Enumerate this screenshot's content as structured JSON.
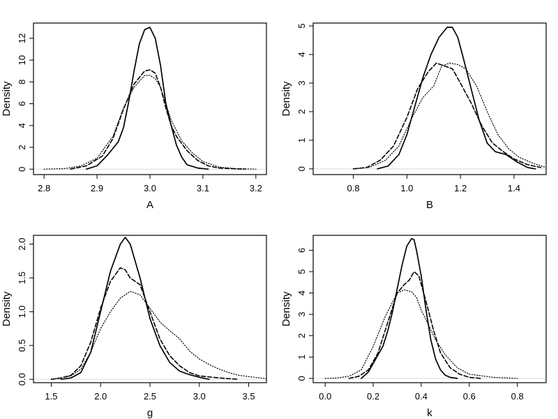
{
  "chart_data": [
    {
      "type": "line",
      "xlabel": "A",
      "ylabel": "Density",
      "xlim": [
        2.78,
        3.22
      ],
      "ylim": [
        -0.5,
        13.4
      ],
      "xticks": [
        2.8,
        2.9,
        3.0,
        3.1,
        3.2
      ],
      "xtick_labels": [
        "2.8",
        "2.9",
        "3.0",
        "3.1",
        "3.2"
      ],
      "yticks": [
        0,
        2,
        4,
        6,
        8,
        10,
        12
      ],
      "ytick_labels": [
        "0",
        "2",
        "4",
        "6",
        "8",
        "10",
        "12"
      ],
      "series": [
        {
          "style": "solid",
          "x": [
            2.88,
            2.9,
            2.92,
            2.94,
            2.95,
            2.96,
            2.97,
            2.98,
            2.99,
            3.0,
            3.01,
            3.02,
            3.03,
            3.04,
            3.05,
            3.06,
            3.07,
            3.09,
            3.11
          ],
          "y": [
            0,
            0.3,
            1.3,
            2.5,
            3.8,
            6.2,
            9.0,
            11.5,
            12.8,
            13.0,
            12.0,
            9.5,
            6.0,
            4.0,
            2.2,
            1.1,
            0.4,
            0.1,
            0
          ]
        },
        {
          "style": "dashed",
          "x": [
            2.85,
            2.88,
            2.91,
            2.93,
            2.95,
            2.97,
            2.99,
            3.0,
            3.01,
            3.02,
            3.03,
            3.04,
            3.05,
            3.07,
            3.09,
            3.11,
            3.13,
            3.15,
            3.18
          ],
          "y": [
            0,
            0.3,
            1.2,
            2.8,
            5.5,
            7.8,
            9.0,
            9.1,
            8.8,
            7.5,
            5.6,
            4.0,
            3.0,
            1.7,
            0.8,
            0.3,
            0.1,
            0.05,
            0
          ]
        },
        {
          "style": "dotted",
          "x": [
            2.8,
            2.84,
            2.87,
            2.9,
            2.93,
            2.95,
            2.97,
            2.99,
            3.0,
            3.01,
            3.02,
            3.04,
            3.06,
            3.08,
            3.1,
            3.13,
            3.16,
            3.2
          ],
          "y": [
            0,
            0.05,
            0.3,
            1.0,
            3.0,
            5.6,
            7.5,
            8.6,
            8.6,
            8.3,
            7.5,
            4.5,
            2.6,
            1.5,
            0.7,
            0.2,
            0.05,
            0
          ]
        }
      ]
    },
    {
      "type": "line",
      "xlabel": "B",
      "ylabel": "Density",
      "xlim": [
        0.65,
        1.52
      ],
      "ylim": [
        -0.2,
        5.1
      ],
      "xticks": [
        0.8,
        1.0,
        1.2,
        1.4
      ],
      "xtick_labels": [
        "0.8",
        "1.0",
        "1.2",
        "1.4"
      ],
      "yticks": [
        0,
        1,
        2,
        3,
        4,
        5
      ],
      "ytick_labels": [
        "0",
        "1",
        "2",
        "3",
        "4",
        "5"
      ],
      "series": [
        {
          "style": "solid",
          "x": [
            0.89,
            0.93,
            0.97,
            1.0,
            1.03,
            1.06,
            1.09,
            1.12,
            1.15,
            1.17,
            1.19,
            1.21,
            1.24,
            1.27,
            1.3,
            1.33,
            1.37,
            1.41,
            1.45,
            1.48
          ],
          "y": [
            0,
            0.1,
            0.5,
            1.2,
            2.2,
            3.2,
            4.0,
            4.6,
            4.95,
            4.95,
            4.6,
            3.9,
            2.8,
            1.7,
            0.9,
            0.6,
            0.5,
            0.25,
            0.05,
            0
          ]
        },
        {
          "style": "dashed",
          "x": [
            0.8,
            0.85,
            0.9,
            0.95,
            1.0,
            1.04,
            1.08,
            1.11,
            1.14,
            1.17,
            1.2,
            1.24,
            1.28,
            1.32,
            1.36,
            1.4,
            1.45,
            1.5
          ],
          "y": [
            0,
            0.05,
            0.3,
            0.8,
            1.8,
            2.8,
            3.4,
            3.7,
            3.6,
            3.5,
            3.0,
            2.3,
            1.5,
            0.9,
            0.6,
            0.35,
            0.15,
            0.05
          ]
        },
        {
          "style": "dotted",
          "x": [
            0.8,
            0.86,
            0.92,
            0.97,
            1.02,
            1.06,
            1.1,
            1.13,
            1.16,
            1.19,
            1.22,
            1.26,
            1.3,
            1.34,
            1.38,
            1.42,
            1.47,
            1.52
          ],
          "y": [
            0,
            0.05,
            0.3,
            0.8,
            1.8,
            2.5,
            2.9,
            3.6,
            3.7,
            3.65,
            3.5,
            2.9,
            2.0,
            1.2,
            0.7,
            0.4,
            0.2,
            0.05
          ]
        }
      ]
    },
    {
      "type": "line",
      "xlabel": "g",
      "ylabel": "Density",
      "xlim": [
        1.32,
        3.68
      ],
      "ylim": [
        -0.05,
        2.13
      ],
      "xticks": [
        1.5,
        2.0,
        2.5,
        3.0,
        3.5
      ],
      "xtick_labels": [
        "1.5",
        "2.0",
        "2.5",
        "3.0",
        "3.5"
      ],
      "yticks": [
        0.0,
        0.5,
        1.0,
        1.5,
        2.0
      ],
      "ytick_labels": [
        "0.0",
        "0.5",
        "1.0",
        "1.5",
        "2.0"
      ],
      "series": [
        {
          "style": "solid",
          "x": [
            1.6,
            1.7,
            1.8,
            1.9,
            2.0,
            2.1,
            2.2,
            2.25,
            2.3,
            2.4,
            2.5,
            2.6,
            2.7,
            2.8,
            2.9,
            3.0,
            3.1
          ],
          "y": [
            0,
            0.02,
            0.1,
            0.4,
            1.0,
            1.6,
            2.0,
            2.1,
            2.0,
            1.5,
            0.9,
            0.5,
            0.25,
            0.12,
            0.07,
            0.03,
            0
          ]
        },
        {
          "style": "dashed",
          "x": [
            1.5,
            1.6,
            1.7,
            1.8,
            1.9,
            2.0,
            2.1,
            2.2,
            2.25,
            2.3,
            2.4,
            2.5,
            2.6,
            2.7,
            2.8,
            2.9,
            3.0,
            3.2,
            3.4
          ],
          "y": [
            0,
            0.02,
            0.06,
            0.2,
            0.55,
            1.05,
            1.45,
            1.65,
            1.62,
            1.5,
            1.4,
            1.0,
            0.6,
            0.35,
            0.2,
            0.1,
            0.05,
            0.02,
            0
          ]
        },
        {
          "style": "dotted",
          "x": [
            1.5,
            1.6,
            1.7,
            1.8,
            1.9,
            2.0,
            2.1,
            2.2,
            2.3,
            2.4,
            2.5,
            2.6,
            2.7,
            2.8,
            2.9,
            3.0,
            3.1,
            3.2,
            3.3,
            3.4,
            3.5,
            3.68
          ],
          "y": [
            0,
            0.02,
            0.05,
            0.15,
            0.4,
            0.75,
            1.0,
            1.2,
            1.3,
            1.25,
            1.05,
            0.85,
            0.72,
            0.6,
            0.42,
            0.3,
            0.22,
            0.15,
            0.1,
            0.06,
            0.04,
            0.01
          ]
        }
      ]
    },
    {
      "type": "line",
      "xlabel": "k",
      "ylabel": "Density",
      "xlim": [
        -0.05,
        0.92
      ],
      "ylim": [
        -0.2,
        6.7
      ],
      "xticks": [
        0.0,
        0.2,
        0.4,
        0.6,
        0.8
      ],
      "xtick_labels": [
        "0.0",
        "0.2",
        "0.4",
        "0.6",
        "0.8"
      ],
      "yticks": [
        0,
        1,
        2,
        3,
        4,
        5,
        6
      ],
      "ytick_labels": [
        "0",
        "1",
        "2",
        "3",
        "4",
        "5",
        "6"
      ],
      "series": [
        {
          "style": "solid",
          "x": [
            0.15,
            0.18,
            0.2,
            0.22,
            0.24,
            0.26,
            0.28,
            0.3,
            0.32,
            0.34,
            0.36,
            0.37,
            0.38,
            0.4,
            0.42,
            0.44,
            0.46,
            0.48,
            0.5,
            0.52,
            0.55
          ],
          "y": [
            0,
            0.3,
            0.7,
            1.1,
            1.5,
            2.2,
            3.1,
            4.2,
            5.3,
            6.2,
            6.55,
            6.5,
            6.0,
            4.8,
            3.2,
            1.8,
            0.9,
            0.4,
            0.15,
            0.05,
            0
          ]
        },
        {
          "style": "dashed",
          "x": [
            0.1,
            0.14,
            0.18,
            0.22,
            0.26,
            0.3,
            0.33,
            0.35,
            0.37,
            0.39,
            0.42,
            0.45,
            0.48,
            0.52,
            0.56,
            0.6,
            0.65
          ],
          "y": [
            0,
            0.1,
            0.4,
            1.2,
            2.6,
            4.0,
            4.4,
            4.6,
            5.0,
            4.8,
            3.6,
            2.3,
            1.2,
            0.5,
            0.2,
            0.05,
            0
          ]
        },
        {
          "style": "dotted",
          "x": [
            0.0,
            0.05,
            0.1,
            0.15,
            0.2,
            0.25,
            0.3,
            0.33,
            0.36,
            0.38,
            0.4,
            0.43,
            0.46,
            0.5,
            0.55,
            0.6,
            0.7,
            0.8
          ],
          "y": [
            0,
            0.02,
            0.1,
            0.4,
            1.5,
            2.9,
            4.0,
            4.15,
            4.05,
            3.8,
            3.2,
            2.5,
            1.8,
            1.1,
            0.5,
            0.2,
            0.05,
            0
          ]
        }
      ]
    }
  ]
}
